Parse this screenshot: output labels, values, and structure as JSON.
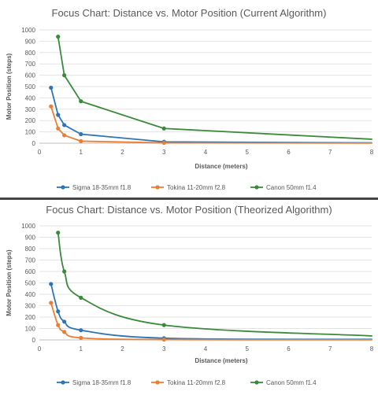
{
  "chart_data": [
    {
      "type": "line",
      "title": "Focus Chart: Distance vs. Motor Position (Current Algorithm)",
      "xlabel": "Distance (meters)",
      "ylabel": "Motor Position (steps)",
      "xlim": [
        0,
        8
      ],
      "ylim": [
        0,
        1000
      ],
      "xticks": [
        "0",
        "1",
        "2",
        "3",
        "4",
        "5",
        "6",
        "7",
        "8"
      ],
      "yticks": [
        "0",
        "100",
        "200",
        "300",
        "400",
        "500",
        "600",
        "700",
        "800",
        "900",
        "1000"
      ],
      "grid": true,
      "legend": "bottom",
      "smooth": false,
      "series": [
        {
          "name": "Sigma 18-35mm f1.8",
          "color": "#2E75B6",
          "x": [
            0.28,
            0.45,
            0.6,
            1.0,
            3.0,
            8.0
          ],
          "y": [
            490,
            250,
            160,
            80,
            12,
            3
          ],
          "markers": [
            true,
            true,
            true,
            true,
            true,
            false
          ]
        },
        {
          "name": "Tokina 11-20mm f2.8",
          "color": "#ED7D31",
          "x": [
            0.28,
            0.45,
            0.6,
            1.0,
            3.0,
            8.0
          ],
          "y": [
            325,
            130,
            70,
            18,
            3,
            1
          ],
          "markers": [
            true,
            true,
            true,
            true,
            true,
            false
          ]
        },
        {
          "name": "Canon 50mm f1.4",
          "color": "#3A8A3A",
          "x": [
            0.45,
            0.6,
            1.0,
            3.0,
            8.0
          ],
          "y": [
            940,
            600,
            370,
            130,
            35
          ],
          "markers": [
            true,
            true,
            true,
            true,
            false
          ]
        }
      ]
    },
    {
      "type": "line",
      "title": "Focus Chart: Distance vs. Motor Position (Theorized Algorithm)",
      "xlabel": "Distance (meters)",
      "ylabel": "Motor Position (steps)",
      "xlim": [
        0,
        8
      ],
      "ylim": [
        0,
        1000
      ],
      "xticks": [
        "0",
        "1",
        "2",
        "3",
        "4",
        "5",
        "6",
        "7",
        "8"
      ],
      "yticks": [
        "0",
        "100",
        "200",
        "300",
        "400",
        "500",
        "600",
        "700",
        "800",
        "900",
        "1000"
      ],
      "grid": true,
      "legend": "bottom",
      "smooth": true,
      "series": [
        {
          "name": "Sigma 18-35mm f1.8",
          "color": "#2E75B6",
          "x": [
            0.28,
            0.45,
            0.6,
            1.0,
            3.0,
            8.0
          ],
          "y": [
            490,
            250,
            160,
            85,
            15,
            5
          ],
          "markers": [
            true,
            true,
            true,
            true,
            true,
            false
          ]
        },
        {
          "name": "Tokina 11-20mm f2.8",
          "color": "#ED7D31",
          "x": [
            0.28,
            0.45,
            0.6,
            1.0,
            3.0,
            8.0
          ],
          "y": [
            325,
            130,
            70,
            18,
            3,
            1
          ],
          "markers": [
            true,
            true,
            true,
            true,
            true,
            false
          ]
        },
        {
          "name": "Canon 50mm f1.4",
          "color": "#3A8A3A",
          "x": [
            0.45,
            0.6,
            1.0,
            3.0,
            8.0
          ],
          "y": [
            940,
            600,
            370,
            130,
            35
          ],
          "markers": [
            true,
            true,
            true,
            true,
            false
          ]
        }
      ]
    }
  ]
}
